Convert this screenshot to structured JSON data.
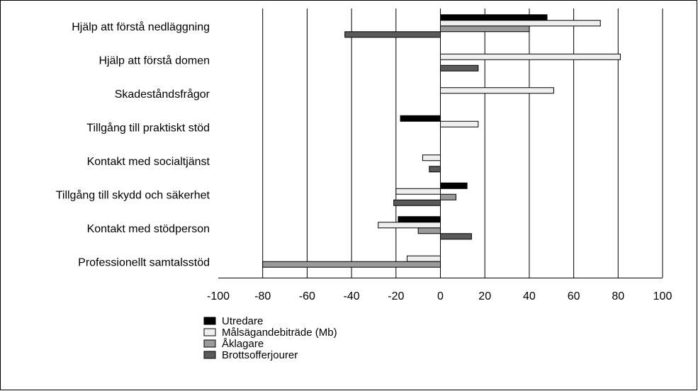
{
  "chart_data": {
    "type": "bar",
    "orientation": "horizontal",
    "categories": [
      "Hjälp att förstå nedläggning",
      "Hjälp att förstå domen",
      "Skadeståndsfrågor",
      "Tillgång till praktiskt stöd",
      "Kontakt med socialtjänst",
      "Tillgång till skydd och säkerhet",
      "Kontakt med stödperson",
      "Professionellt samtalsstöd"
    ],
    "series": [
      {
        "name": "Utredare",
        "color": "#000000",
        "values": [
          48,
          0,
          0,
          -18,
          0,
          12,
          -19,
          0
        ]
      },
      {
        "name": "Målsägandebiträde (Mb)",
        "color": "#efefef",
        "values": [
          72,
          81,
          51,
          17,
          -8,
          -20,
          -28,
          -15
        ]
      },
      {
        "name": "Åklagare",
        "color": "#9a9a9a",
        "values": [
          40,
          0,
          0,
          0,
          0,
          7,
          -10,
          -80
        ]
      },
      {
        "name": "Brottsofferjourer",
        "color": "#5a5a5a",
        "values": [
          -43,
          17,
          0,
          0,
          -5,
          -21,
          14,
          0
        ]
      }
    ],
    "xlim": [
      -100,
      100
    ],
    "xticks": [
      "-100",
      "-80",
      "-60",
      "-40",
      "-20",
      "0",
      "20",
      "40",
      "60",
      "80",
      "100"
    ],
    "grid": "vertical",
    "legend": "bottom"
  }
}
